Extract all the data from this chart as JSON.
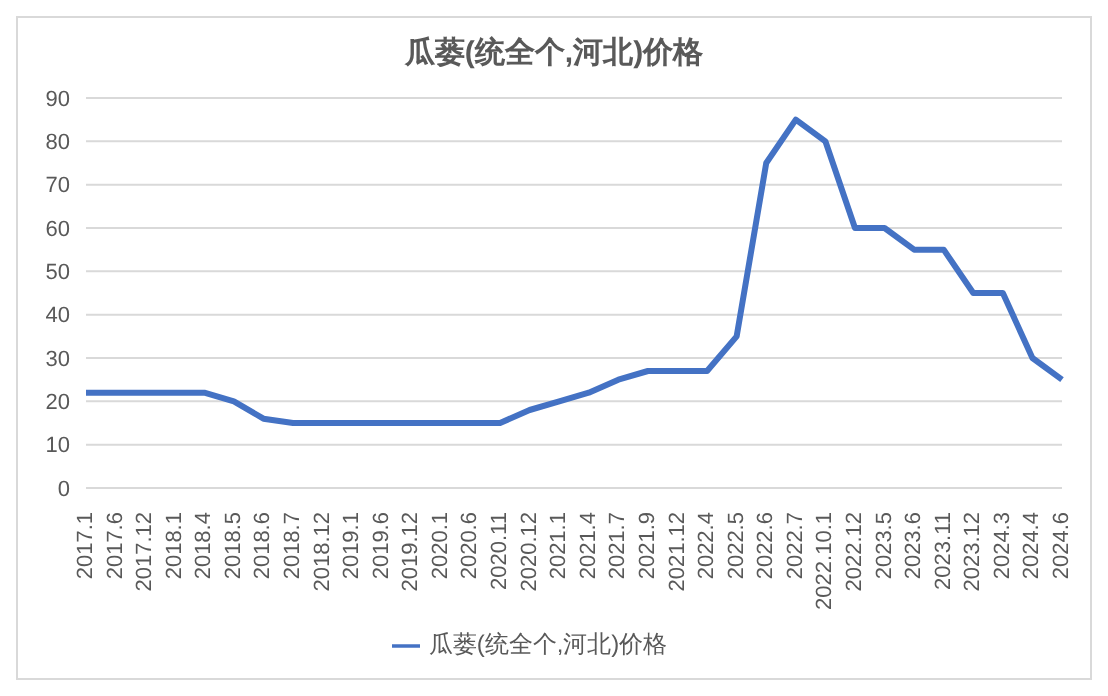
{
  "chart_data": {
    "type": "line",
    "title": "瓜蒌(统全个,河北)价格",
    "categories": [
      "2017.1",
      "2017.6",
      "2017.12",
      "2018.1",
      "2018.4",
      "2018.5",
      "2018.6",
      "2018.7",
      "2018.12",
      "2019.1",
      "2019.6",
      "2019.12",
      "2020.1",
      "2020.6",
      "2020.11",
      "2020.12",
      "2021.1",
      "2021.4",
      "2021.7",
      "2021.9",
      "2021.12",
      "2022.4",
      "2022.5",
      "2022.6",
      "2022.7",
      "2022.10.1",
      "2022.12",
      "2023.5",
      "2023.6",
      "2023.11",
      "2023.12",
      "2024.3",
      "2024.4",
      "2024.6"
    ],
    "series": [
      {
        "name": "瓜蒌(统全个,河北)价格",
        "color": "#4472c4",
        "values": [
          22,
          22,
          22,
          22,
          22,
          20,
          16,
          15,
          15,
          15,
          15,
          15,
          15,
          15,
          15,
          18,
          20,
          22,
          25,
          27,
          27,
          27,
          35,
          75,
          85,
          80,
          60,
          60,
          55,
          55,
          45,
          45,
          30,
          25
        ]
      }
    ],
    "ylim": [
      0,
      90
    ],
    "yticks": [
      0,
      10,
      20,
      30,
      40,
      50,
      60,
      70,
      80,
      90
    ],
    "grid": "y",
    "legend": "bottom",
    "marker": "none",
    "line_style": "solid"
  }
}
